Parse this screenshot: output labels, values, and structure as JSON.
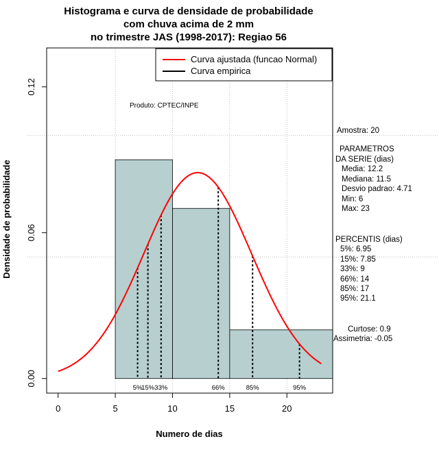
{
  "chart_data": {
    "type": "bar",
    "title_lines": [
      "Histograma e curva de densidade de probabilidade",
      "com chuva acima de 2 mm",
      "no trimestre JAS (1998-2017): Regiao 56"
    ],
    "xlabel": "Numero de dias",
    "ylabel": "Densidade de probabilidade",
    "xlim": [
      -1,
      24
    ],
    "ylim": [
      -0.006,
      0.136
    ],
    "x_ticks": [
      0,
      5,
      10,
      15,
      20
    ],
    "y_ticks": [
      0.0,
      0.06,
      0.12
    ],
    "y_tick_labels": [
      "0.00",
      "0.06",
      "0.12"
    ],
    "grid": true,
    "grid_x": [
      5,
      10,
      15,
      20
    ],
    "grid_y": [
      0.05,
      0.1
    ],
    "histogram": {
      "bins": [
        {
          "start": 5,
          "end": 10,
          "density": 0.09
        },
        {
          "start": 10,
          "end": 15,
          "density": 0.07
        },
        {
          "start": 15,
          "end": 24,
          "density": 0.02
        }
      ],
      "color": "#b7cfcf"
    },
    "normal_curve": {
      "mean": 12.2,
      "sd": 4.71,
      "x_range": [
        0,
        23
      ],
      "color": "#ff0000"
    },
    "legend": {
      "position": "top-right",
      "entries": [
        {
          "label": "Curva ajustada (funcao Normal)",
          "color": "#ff0000"
        },
        {
          "label": "Curva empirica",
          "color": "#000000"
        }
      ]
    },
    "percentile_lines": [
      {
        "label": "5%",
        "x": 6.95
      },
      {
        "label": "15%",
        "x": 7.85
      },
      {
        "label": "33%",
        "x": 9
      },
      {
        "label": "66%",
        "x": 14
      },
      {
        "label": "85%",
        "x": 17
      },
      {
        "label": "95%",
        "x": 21.1
      }
    ],
    "product_note": "Produto: CPTEC/INPE",
    "stats_lines": [
      "Amostra: 20",
      "PARAMETROS",
      "DA SERIE (dias)",
      "Media: 12.2",
      "Mediana: 11.5",
      "Desvio padrao: 4.71",
      "Min: 6",
      "Max: 23",
      "PERCENTIS (dias)",
      "5%: 6.95",
      "15%: 7.85",
      "33%: 9",
      "66%: 14",
      "85%: 17",
      "95%: 21.1",
      "Curtose: 0.9",
      "Assimetria: -0.05"
    ]
  }
}
